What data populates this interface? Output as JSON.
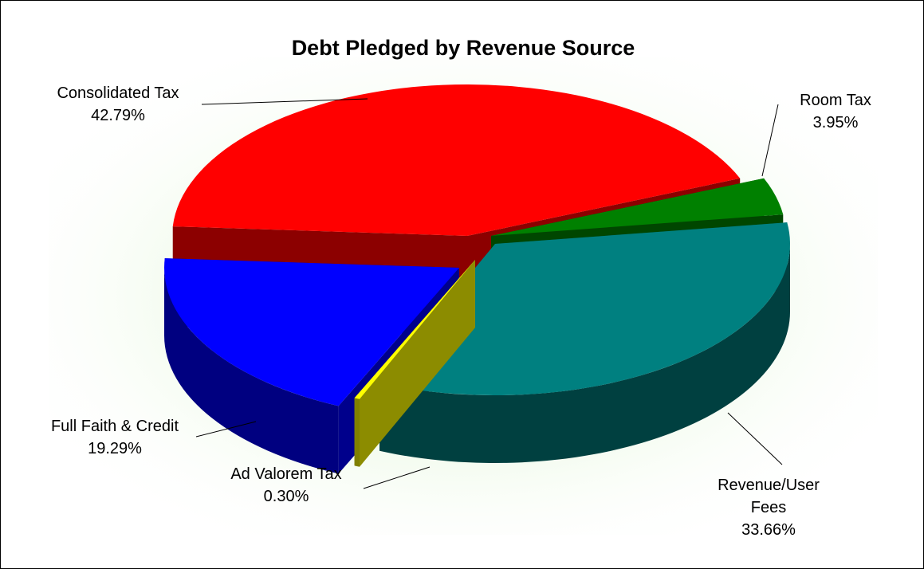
{
  "chart_data": {
    "type": "pie",
    "style": "3d-exploded",
    "title": "Debt Pledged by Revenue Source",
    "slices": [
      {
        "label": "Consolidated Tax",
        "value": 42.79,
        "value_label": "42.79%",
        "color": "#ff0000"
      },
      {
        "label": "Room Tax",
        "value": 3.95,
        "value_label": "3.95%",
        "color": "#008000"
      },
      {
        "label": "Revenue/User Fees",
        "value": 33.66,
        "value_label": "33.66%",
        "color": "#008080"
      },
      {
        "label": "Ad Valorem Tax",
        "value": 0.3,
        "value_label": "0.30%",
        "color": "#ffff00"
      },
      {
        "label": "Full Faith & Credit",
        "value": 19.29,
        "value_label": "19.29%",
        "color": "#0000ff"
      }
    ],
    "legend": "none",
    "grid": false,
    "plot_background": "#eefbe8"
  }
}
